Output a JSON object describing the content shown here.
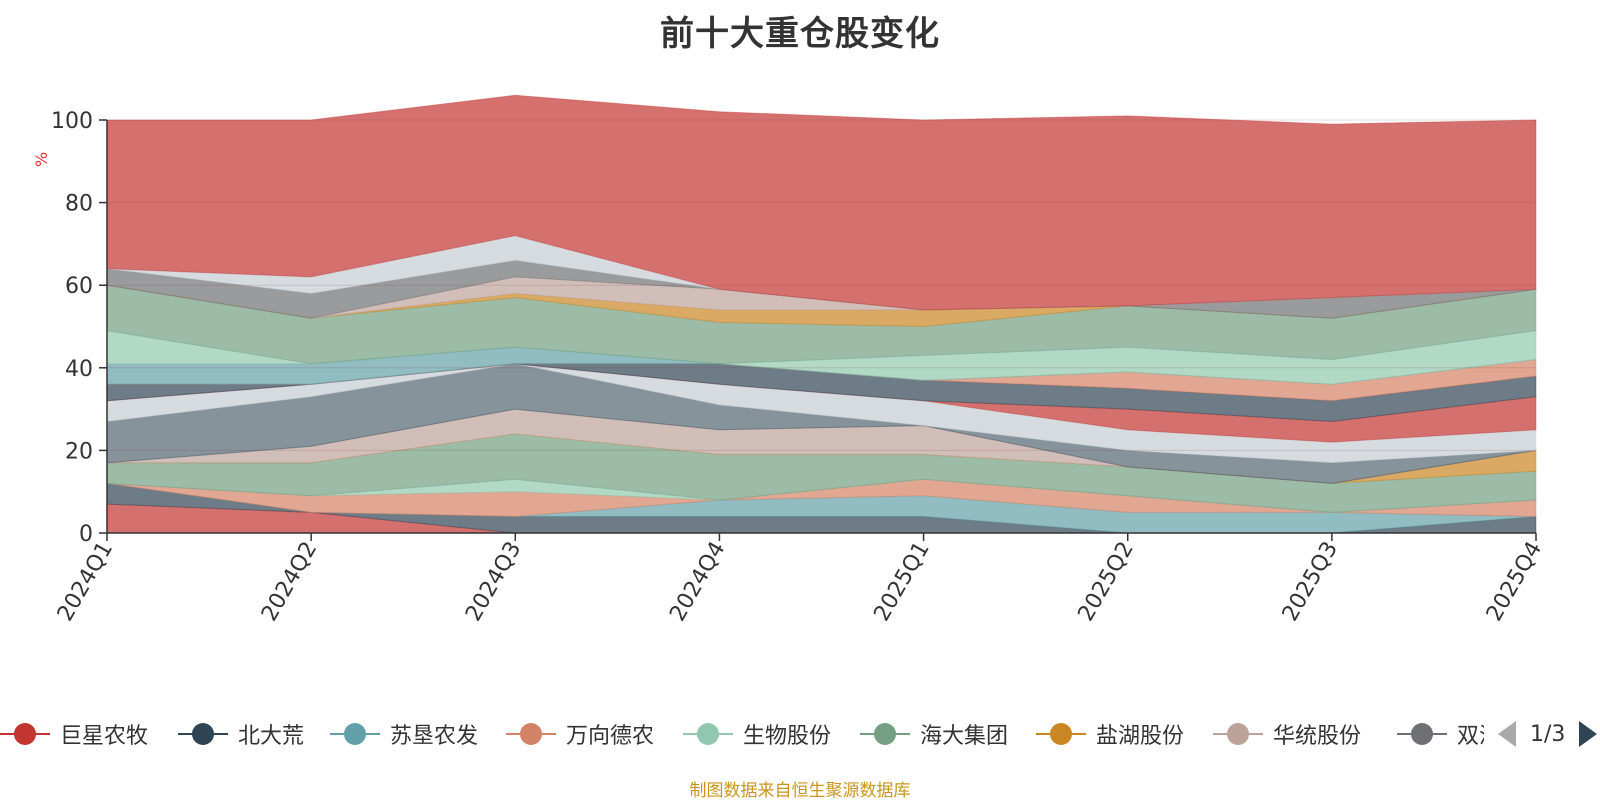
{
  "chart_data": {
    "type": "area",
    "stacked": true,
    "title": "前十大重仓股变化",
    "ylabel": "%",
    "xlabel": "",
    "x": [
      "2024Q1",
      "2024Q2",
      "2024Q3",
      "2024Q4",
      "2025Q1",
      "2025Q2",
      "2025Q3",
      "2025Q4"
    ],
    "ylim": [
      0,
      100
    ],
    "yticks": [
      0,
      20,
      40,
      60,
      80,
      100
    ],
    "grid": true,
    "series": [
      {
        "name": "巨星农牧",
        "color": "#c23531",
        "values": [
          7,
          5,
          0,
          0,
          0,
          0,
          0,
          0
        ]
      },
      {
        "name": "北大荒",
        "color": "#2f4554",
        "values": [
          5,
          0,
          4,
          4,
          4,
          0,
          0,
          4
        ]
      },
      {
        "name": "苏垦农发",
        "color": "#61a0a8",
        "values": [
          0,
          0,
          0,
          4,
          5,
          5,
          5,
          0
        ]
      },
      {
        "name": "万向德农",
        "color": "#d48265",
        "values": [
          0,
          4,
          6,
          0,
          4,
          4,
          0,
          4
        ]
      },
      {
        "name": "生物股份",
        "color": "#91c7ae",
        "values": [
          0,
          0,
          3,
          0,
          0,
          0,
          0,
          0
        ]
      },
      {
        "name": "海大集团",
        "color": "#749f83",
        "values": [
          5,
          8,
          11,
          11,
          6,
          7,
          7,
          7
        ]
      },
      {
        "name": "盐湖股份",
        "color": "#ca8622",
        "values": [
          0,
          0,
          0,
          0,
          0,
          0,
          0,
          5
        ]
      },
      {
        "name": "华统股份",
        "color": "#bda29a",
        "values": [
          0,
          4,
          6,
          6,
          7,
          0,
          0,
          0
        ]
      },
      {
        "name": "双汇发展",
        "color": "#6e7074",
        "values": [
          0,
          0,
          0,
          0,
          0,
          0,
          0,
          0
        ]
      },
      {
        "name": "",
        "color": "#546570",
        "values": [
          10,
          12,
          11,
          6,
          0,
          4,
          5,
          0
        ]
      },
      {
        "name": "",
        "color": "#c4ccd3",
        "values": [
          5,
          3,
          0,
          5,
          6,
          5,
          5,
          5
        ]
      },
      {
        "name": "",
        "color": "#c23531",
        "values": [
          0,
          0,
          0,
          0,
          0,
          5,
          5,
          8
        ]
      },
      {
        "name": "",
        "color": "#2f4554",
        "values": [
          4,
          0,
          0,
          5,
          5,
          5,
          5,
          5
        ]
      },
      {
        "name": "",
        "color": "#d48265",
        "values": [
          0,
          0,
          0,
          0,
          0,
          4,
          4,
          4
        ]
      },
      {
        "name": "",
        "color": "#61a0a8",
        "values": [
          5,
          5,
          4,
          0,
          0,
          0,
          0,
          0
        ]
      },
      {
        "name": "",
        "color": "#91c7ae",
        "values": [
          8,
          0,
          0,
          0,
          6,
          6,
          6,
          7
        ]
      },
      {
        "name": "",
        "color": "#749f83",
        "values": [
          11,
          11,
          12,
          10,
          7,
          10,
          10,
          10
        ]
      },
      {
        "name": "",
        "color": "#ca8622",
        "values": [
          0,
          0,
          1,
          3,
          4,
          0,
          0,
          0
        ]
      },
      {
        "name": "",
        "color": "#bda29a",
        "values": [
          0,
          0,
          4,
          5,
          0,
          0,
          0,
          0
        ]
      },
      {
        "name": "",
        "color": "#6e7074",
        "values": [
          4,
          6,
          4,
          0,
          0,
          0,
          5,
          0
        ]
      },
      {
        "name": "",
        "color": "#c4ccd3",
        "values": [
          0,
          4,
          6,
          0,
          0,
          0,
          0,
          0
        ]
      },
      {
        "name": "",
        "color": "#c23531",
        "values": [
          36,
          38,
          34,
          43,
          46,
          46,
          42,
          41
        ]
      }
    ]
  },
  "legend": {
    "items": [
      {
        "label": "巨星农牧",
        "color": "#c23531"
      },
      {
        "label": "北大荒",
        "color": "#2f4554"
      },
      {
        "label": "苏垦农发",
        "color": "#61a0a8"
      },
      {
        "label": "万向德农",
        "color": "#d48265"
      },
      {
        "label": "生物股份",
        "color": "#91c7ae"
      },
      {
        "label": "海大集团",
        "color": "#749f83"
      },
      {
        "label": "盐湖股份",
        "color": "#ca8622"
      },
      {
        "label": "华统股份",
        "color": "#bda29a"
      },
      {
        "label": "双汇发展",
        "color": "#6e7074"
      }
    ],
    "page_text": "1/3"
  },
  "footer": {
    "source": "制图数据来自恒生聚源数据库"
  }
}
